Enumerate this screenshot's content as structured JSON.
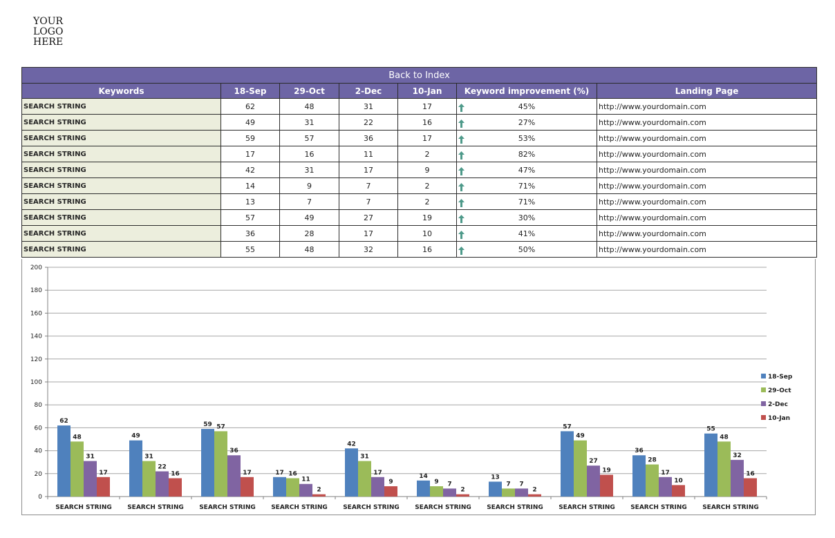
{
  "logo": {
    "line1": "YOUR",
    "line2": "LOGO",
    "line3": "HERE"
  },
  "table": {
    "back_to_index": "Back to Index",
    "headers": [
      "Keywords",
      "18-Sep",
      "29-Oct",
      "2-Dec",
      "10-Jan",
      "Keyword improvement (%)",
      "Landing Page"
    ],
    "rows": [
      {
        "keyword": "SEARCH STRING",
        "v1": "62",
        "v2": "48",
        "v3": "31",
        "v4": "17",
        "improvement": "45%",
        "url": "http://www.yourdomain.com"
      },
      {
        "keyword": "SEARCH STRING",
        "v1": "49",
        "v2": "31",
        "v3": "22",
        "v4": "16",
        "improvement": "27%",
        "url": "http://www.yourdomain.com"
      },
      {
        "keyword": "SEARCH STRING",
        "v1": "59",
        "v2": "57",
        "v3": "36",
        "v4": "17",
        "improvement": "53%",
        "url": "http://www.yourdomain.com"
      },
      {
        "keyword": "SEARCH STRING",
        "v1": "17",
        "v2": "16",
        "v3": "11",
        "v4": "2",
        "improvement": "82%",
        "url": "http://www.yourdomain.com"
      },
      {
        "keyword": "SEARCH STRING",
        "v1": "42",
        "v2": "31",
        "v3": "17",
        "v4": "9",
        "improvement": "47%",
        "url": "http://www.yourdomain.com"
      },
      {
        "keyword": "SEARCH STRING",
        "v1": "14",
        "v2": "9",
        "v3": "7",
        "v4": "2",
        "improvement": "71%",
        "url": "http://www.yourdomain.com"
      },
      {
        "keyword": "SEARCH STRING",
        "v1": "13",
        "v2": "7",
        "v3": "7",
        "v4": "2",
        "improvement": "71%",
        "url": "http://www.yourdomain.com"
      },
      {
        "keyword": "SEARCH STRING",
        "v1": "57",
        "v2": "49",
        "v3": "27",
        "v4": "19",
        "improvement": "30%",
        "url": "http://www.yourdomain.com"
      },
      {
        "keyword": "SEARCH STRING",
        "v1": "36",
        "v2": "28",
        "v3": "17",
        "v4": "10",
        "improvement": "41%",
        "url": "http://www.yourdomain.com"
      },
      {
        "keyword": "SEARCH STRING",
        "v1": "55",
        "v2": "48",
        "v3": "32",
        "v4": "16",
        "improvement": "50%",
        "url": "http://www.yourdomain.com"
      }
    ],
    "arrow_icon": "up-arrow-icon",
    "arrow_color": "#4e9a8a"
  },
  "chart_data": {
    "type": "bar",
    "categories": [
      "SEARCH STRING",
      "SEARCH STRING",
      "SEARCH STRING",
      "SEARCH STRING",
      "SEARCH STRING",
      "SEARCH STRING",
      "SEARCH STRING",
      "SEARCH STRING",
      "SEARCH STRING",
      "SEARCH STRING"
    ],
    "series": [
      {
        "name": "18-Sep",
        "color": "#4f81bd",
        "values": [
          62,
          49,
          59,
          17,
          42,
          14,
          13,
          57,
          36,
          55
        ]
      },
      {
        "name": "29-Oct",
        "color": "#9bbb59",
        "values": [
          48,
          31,
          57,
          16,
          31,
          9,
          7,
          49,
          28,
          48
        ]
      },
      {
        "name": "2-Dec",
        "color": "#8064a2",
        "values": [
          31,
          22,
          36,
          11,
          17,
          7,
          7,
          27,
          17,
          32
        ]
      },
      {
        "name": "10-Jan",
        "color": "#c0504d",
        "values": [
          17,
          16,
          17,
          2,
          9,
          2,
          2,
          19,
          10,
          16
        ]
      }
    ],
    "yticks": [
      0,
      20,
      40,
      60,
      80,
      100,
      120,
      140,
      160,
      180,
      200
    ],
    "ylim": [
      0,
      200
    ],
    "grid": true,
    "legend": "right",
    "data_labels": true
  }
}
